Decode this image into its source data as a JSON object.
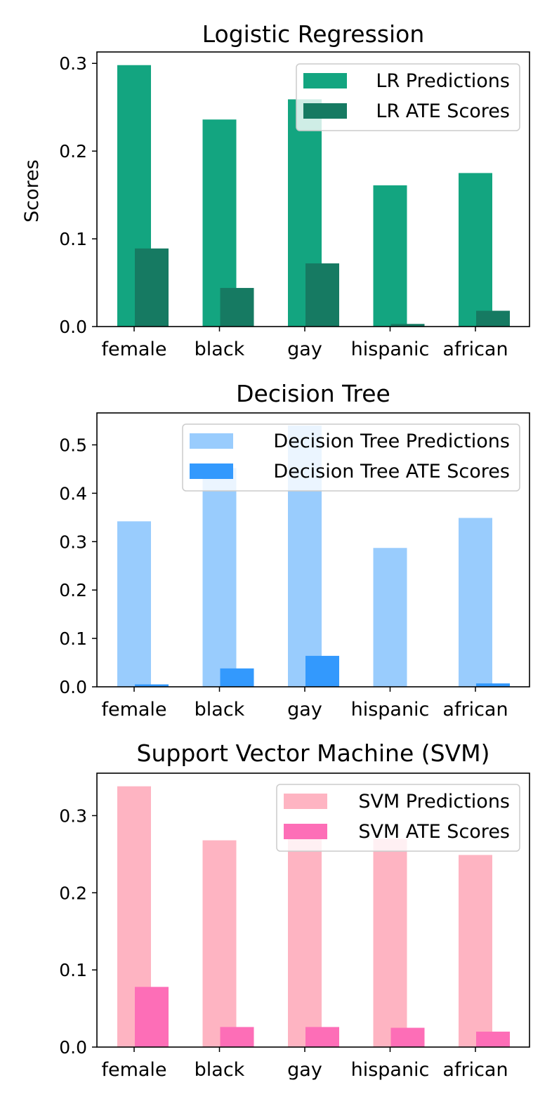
{
  "chart_data": [
    {
      "type": "bar",
      "title": "Logistic Regression",
      "ylabel": "Scores",
      "xlabel": "",
      "categories": [
        "female",
        "black",
        "gay",
        "hispanic",
        "african"
      ],
      "ylim": [
        0,
        0.313
      ],
      "yticks": [
        "0.0",
        "0.1",
        "0.2",
        "0.3"
      ],
      "grid": false,
      "legend_position": "top-right",
      "series": [
        {
          "name": "LR Predictions",
          "values": [
            0.298,
            0.236,
            0.259,
            0.161,
            0.175
          ],
          "color": "#13a580"
        },
        {
          "name": "LR ATE Scores",
          "values": [
            0.089,
            0.044,
            0.072,
            0.003,
            0.018
          ],
          "color": "#167a62"
        }
      ]
    },
    {
      "type": "bar",
      "title": "Decision Tree",
      "ylabel": "",
      "xlabel": "",
      "categories": [
        "female",
        "black",
        "gay",
        "hispanic",
        "african"
      ],
      "ylim": [
        0,
        0.566
      ],
      "yticks": [
        "0.0",
        "0.1",
        "0.2",
        "0.3",
        "0.4",
        "0.5"
      ],
      "grid": false,
      "legend_position": "top-right",
      "series": [
        {
          "name": "Decision Tree Predictions",
          "values": [
            0.342,
            0.452,
            0.54,
            0.287,
            0.349
          ],
          "color": "#99ccfd"
        },
        {
          "name": "Decision Tree ATE Scores",
          "values": [
            0.005,
            0.038,
            0.064,
            0.0,
            0.007
          ],
          "color": "#3399fd"
        }
      ]
    },
    {
      "type": "bar",
      "title": "Support Vector Machine (SVM)",
      "ylabel": "",
      "xlabel": "",
      "categories": [
        "female",
        "black",
        "gay",
        "hispanic",
        "african"
      ],
      "ylim": [
        0,
        0.355
      ],
      "yticks": [
        "0.0",
        "0.1",
        "0.2",
        "0.3"
      ],
      "grid": false,
      "legend_position": "top-right",
      "series": [
        {
          "name": "SVM Predictions",
          "values": [
            0.338,
            0.268,
            0.27,
            0.27,
            0.249
          ],
          "color": "#feb4c2"
        },
        {
          "name": "SVM ATE Scores",
          "values": [
            0.078,
            0.026,
            0.026,
            0.025,
            0.02
          ],
          "color": "#fd6eb7"
        }
      ]
    }
  ]
}
